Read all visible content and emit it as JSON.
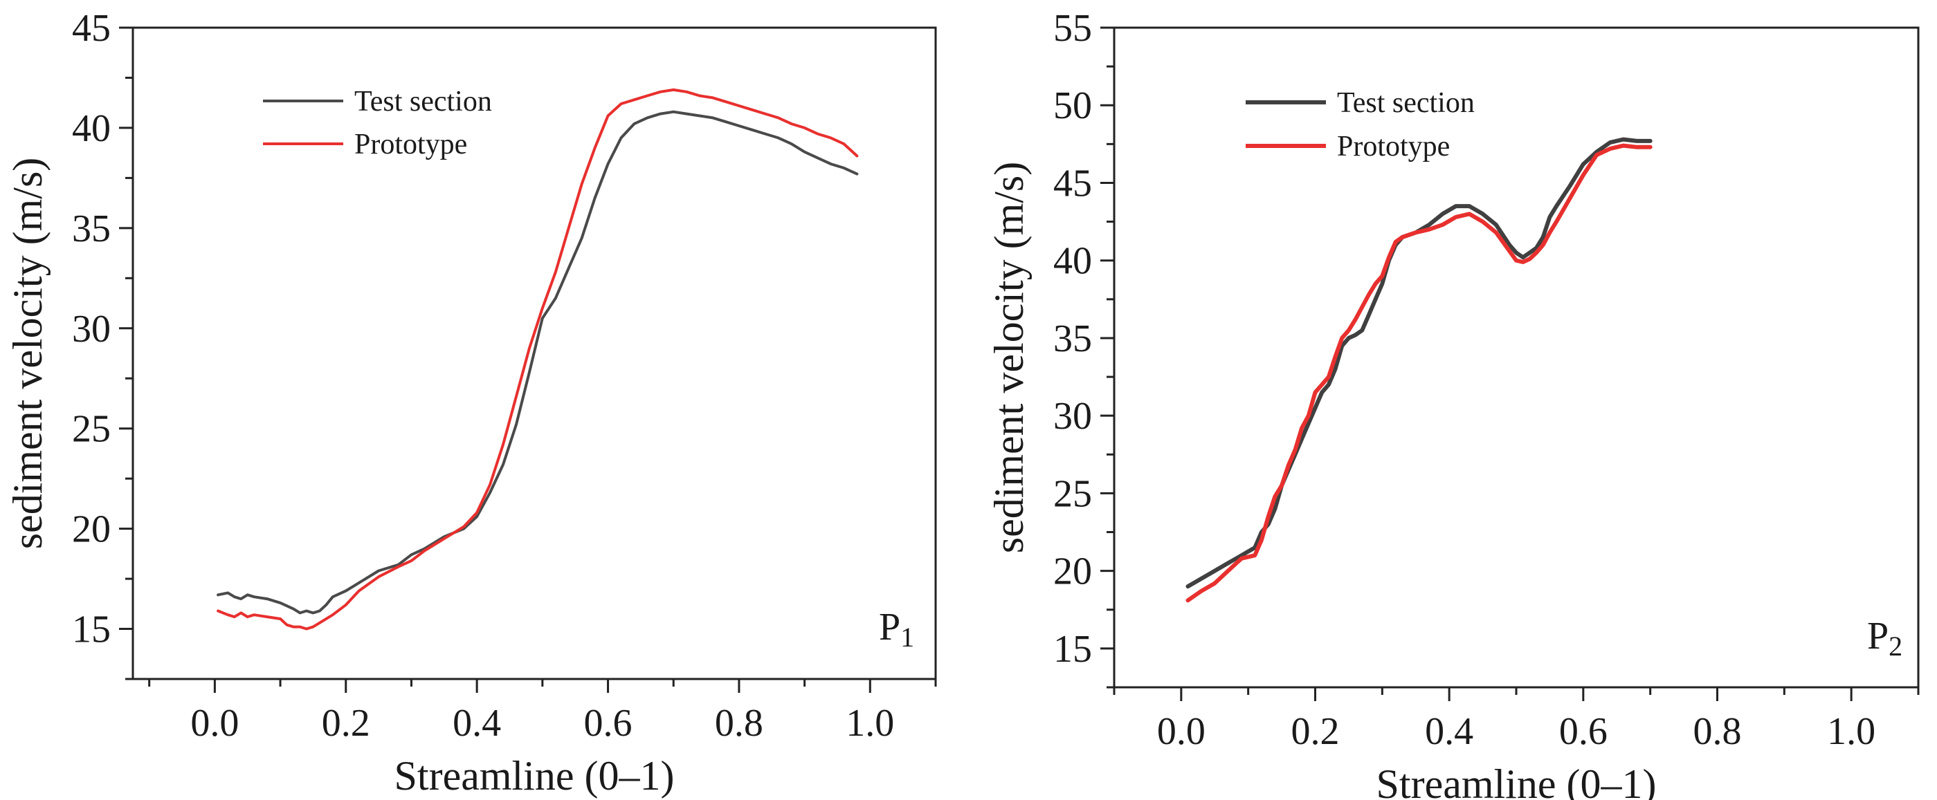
{
  "chart_data": [
    {
      "type": "line",
      "panel_label": "P",
      "panel_subscript": "1",
      "xlabel": "Streamline (0–1)",
      "ylabel": "sediment velocity (m/s)",
      "xlim": [
        -0.125,
        1.1
      ],
      "ylim": [
        12.5,
        45
      ],
      "xticks": [
        0.0,
        0.2,
        0.4,
        0.6,
        0.8,
        1.0
      ],
      "xtick_labels": [
        "0.0",
        "0.2",
        "0.4",
        "0.6",
        "0.8",
        "1.0"
      ],
      "yticks": [
        15,
        20,
        25,
        30,
        35,
        40,
        45
      ],
      "ytick_labels": [
        "15",
        "20",
        "25",
        "30",
        "35",
        "40",
        "45"
      ],
      "legend_position": "top-left",
      "series": [
        {
          "name": "Test section",
          "color": "#4a4a4a",
          "x": [
            0.005,
            0.02,
            0.03,
            0.04,
            0.05,
            0.06,
            0.08,
            0.1,
            0.12,
            0.13,
            0.14,
            0.15,
            0.16,
            0.17,
            0.18,
            0.2,
            0.22,
            0.25,
            0.28,
            0.3,
            0.32,
            0.35,
            0.38,
            0.4,
            0.42,
            0.44,
            0.46,
            0.48,
            0.5,
            0.52,
            0.54,
            0.56,
            0.58,
            0.6,
            0.62,
            0.64,
            0.66,
            0.68,
            0.7,
            0.72,
            0.74,
            0.76,
            0.78,
            0.8,
            0.82,
            0.84,
            0.86,
            0.88,
            0.9,
            0.92,
            0.94,
            0.96,
            0.98
          ],
          "values": [
            16.7,
            16.8,
            16.6,
            16.5,
            16.7,
            16.6,
            16.5,
            16.3,
            16.0,
            15.8,
            15.9,
            15.8,
            15.9,
            16.2,
            16.6,
            16.9,
            17.3,
            17.9,
            18.2,
            18.7,
            19.0,
            19.6,
            20.0,
            20.6,
            21.8,
            23.2,
            25.2,
            27.8,
            30.5,
            31.5,
            33.0,
            34.5,
            36.5,
            38.2,
            39.5,
            40.2,
            40.5,
            40.7,
            40.8,
            40.7,
            40.6,
            40.5,
            40.3,
            40.1,
            39.9,
            39.7,
            39.5,
            39.2,
            38.8,
            38.5,
            38.2,
            38.0,
            37.7
          ]
        },
        {
          "name": "Prototype",
          "color": "#e8302e",
          "x": [
            0.005,
            0.02,
            0.03,
            0.04,
            0.05,
            0.06,
            0.08,
            0.1,
            0.11,
            0.12,
            0.13,
            0.14,
            0.15,
            0.16,
            0.18,
            0.2,
            0.22,
            0.25,
            0.28,
            0.3,
            0.32,
            0.35,
            0.38,
            0.4,
            0.42,
            0.44,
            0.46,
            0.48,
            0.5,
            0.52,
            0.54,
            0.56,
            0.58,
            0.6,
            0.62,
            0.64,
            0.66,
            0.68,
            0.7,
            0.72,
            0.74,
            0.76,
            0.78,
            0.8,
            0.82,
            0.84,
            0.86,
            0.88,
            0.9,
            0.92,
            0.94,
            0.96,
            0.98
          ],
          "values": [
            15.9,
            15.7,
            15.6,
            15.8,
            15.6,
            15.7,
            15.6,
            15.5,
            15.2,
            15.1,
            15.1,
            15.0,
            15.1,
            15.3,
            15.7,
            16.2,
            16.9,
            17.6,
            18.1,
            18.4,
            18.9,
            19.5,
            20.1,
            20.8,
            22.2,
            24.2,
            26.6,
            29.0,
            31.0,
            32.8,
            35.0,
            37.2,
            39.0,
            40.6,
            41.2,
            41.4,
            41.6,
            41.8,
            41.9,
            41.8,
            41.6,
            41.5,
            41.3,
            41.1,
            40.9,
            40.7,
            40.5,
            40.2,
            40.0,
            39.7,
            39.5,
            39.2,
            38.6
          ]
        }
      ]
    },
    {
      "type": "line",
      "panel_label": "P",
      "panel_subscript": "2",
      "xlabel": "Streamline (0–1)",
      "ylabel": "sediment velocity (m/s)",
      "xlim": [
        -0.1,
        1.1
      ],
      "ylim": [
        12.5,
        55
      ],
      "xticks": [
        0.0,
        0.2,
        0.4,
        0.6,
        0.8,
        1.0
      ],
      "xtick_labels": [
        "0.0",
        "0.2",
        "0.4",
        "0.6",
        "0.8",
        "1.0"
      ],
      "yticks": [
        15,
        20,
        25,
        30,
        35,
        40,
        45,
        50,
        55
      ],
      "ytick_labels": [
        "15",
        "20",
        "25",
        "30",
        "35",
        "40",
        "45",
        "50",
        "55"
      ],
      "legend_position": "top-left",
      "series": [
        {
          "name": "Test section",
          "color": "#404040",
          "x": [
            0.01,
            0.03,
            0.05,
            0.07,
            0.09,
            0.11,
            0.12,
            0.13,
            0.14,
            0.15,
            0.16,
            0.17,
            0.18,
            0.19,
            0.2,
            0.21,
            0.22,
            0.23,
            0.24,
            0.25,
            0.26,
            0.27,
            0.28,
            0.29,
            0.3,
            0.31,
            0.32,
            0.33,
            0.35,
            0.37,
            0.39,
            0.41,
            0.43,
            0.45,
            0.47,
            0.49,
            0.5,
            0.51,
            0.52,
            0.53,
            0.54,
            0.55,
            0.56,
            0.58,
            0.6,
            0.62,
            0.64,
            0.66,
            0.68,
            0.7
          ],
          "values": [
            19.0,
            19.5,
            20.0,
            20.5,
            21.0,
            21.5,
            22.5,
            23.0,
            24.0,
            25.5,
            26.5,
            27.5,
            28.5,
            29.5,
            30.5,
            31.5,
            32.0,
            33.0,
            34.5,
            35.0,
            35.2,
            35.5,
            36.5,
            37.5,
            38.5,
            40.0,
            41.0,
            41.5,
            41.8,
            42.3,
            43.0,
            43.5,
            43.5,
            43.0,
            42.3,
            41.0,
            40.5,
            40.2,
            40.5,
            40.8,
            41.5,
            42.8,
            43.5,
            44.8,
            46.2,
            47.0,
            47.6,
            47.8,
            47.7,
            47.7
          ]
        },
        {
          "name": "Prototype",
          "color": "#e8302e",
          "x": [
            0.01,
            0.03,
            0.05,
            0.07,
            0.09,
            0.11,
            0.12,
            0.13,
            0.14,
            0.15,
            0.16,
            0.17,
            0.18,
            0.19,
            0.2,
            0.21,
            0.22,
            0.23,
            0.24,
            0.25,
            0.26,
            0.27,
            0.28,
            0.29,
            0.3,
            0.31,
            0.32,
            0.33,
            0.35,
            0.37,
            0.39,
            0.41,
            0.43,
            0.45,
            0.47,
            0.49,
            0.5,
            0.51,
            0.52,
            0.53,
            0.54,
            0.55,
            0.56,
            0.58,
            0.6,
            0.62,
            0.64,
            0.66,
            0.68,
            0.7
          ],
          "values": [
            18.1,
            18.7,
            19.2,
            20.0,
            20.8,
            21.0,
            22.0,
            23.5,
            24.8,
            25.5,
            26.8,
            27.8,
            29.2,
            30.0,
            31.5,
            32.0,
            32.5,
            33.8,
            35.0,
            35.5,
            36.2,
            37.0,
            37.8,
            38.5,
            39.0,
            40.2,
            41.2,
            41.5,
            41.8,
            42.0,
            42.3,
            42.8,
            43.0,
            42.5,
            41.8,
            40.6,
            40.0,
            39.9,
            40.1,
            40.5,
            41.0,
            41.8,
            42.5,
            44.0,
            45.5,
            46.8,
            47.2,
            47.4,
            47.3,
            47.3
          ]
        }
      ]
    }
  ]
}
